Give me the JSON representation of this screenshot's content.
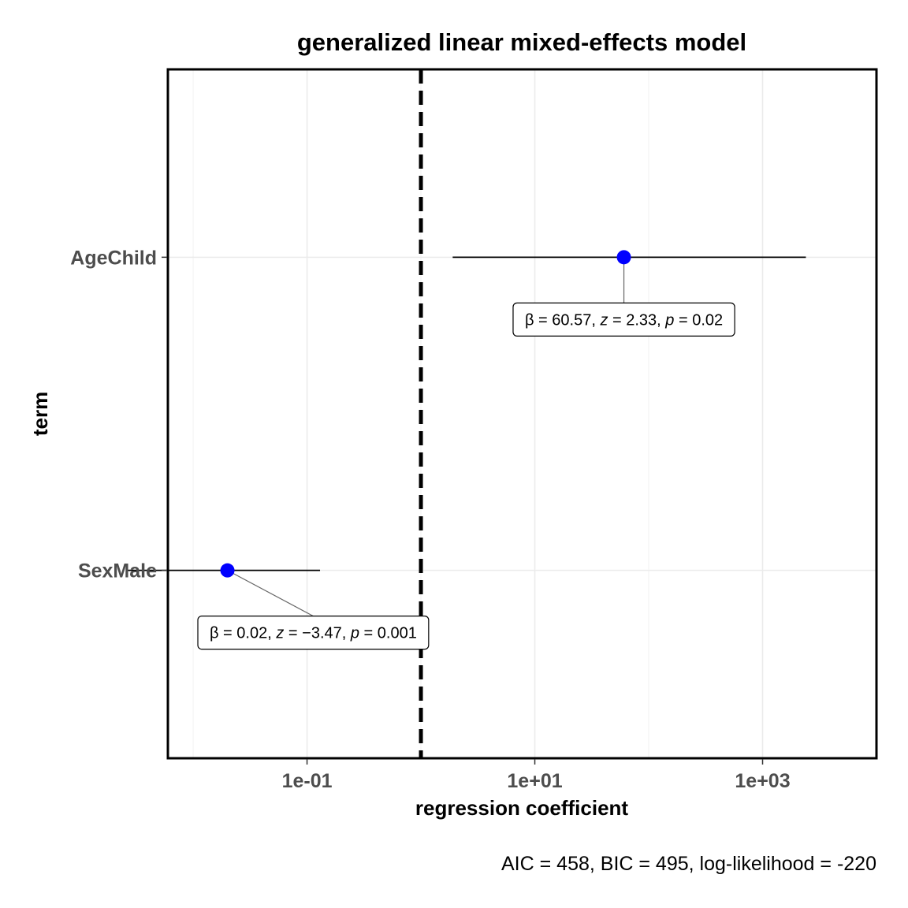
{
  "chart_data": {
    "type": "scatter",
    "subtype": "coefficient-plot",
    "title": "generalized linear mixed-effects model",
    "xlabel": "regression coefficient",
    "ylabel": "term",
    "x_scale": "log10",
    "xlim": [
      0.006,
      10000
    ],
    "x_ticks": [
      0.1,
      10,
      1000
    ],
    "x_tick_labels": [
      "1e-01",
      "1e+01",
      "1e+03"
    ],
    "reference_line": 1,
    "grid": true,
    "point_color": "#0000ff",
    "terms": [
      "AgeChild",
      "SexMale"
    ],
    "estimates": [
      {
        "term": "AgeChild",
        "estimate": 60.57,
        "conf_low": 1.9,
        "conf_high": 2400,
        "annotation": {
          "beta": "60.57",
          "z": "2.33",
          "p": "0.02"
        }
      },
      {
        "term": "SexMale",
        "estimate": 0.02,
        "conf_low": 0.0026,
        "conf_high": 0.13,
        "annotation": {
          "beta": "0.02",
          "z": "−3.47",
          "p": "0.001"
        }
      }
    ],
    "caption": "AIC = 458, BIC = 495, log-likelihood = -220"
  }
}
